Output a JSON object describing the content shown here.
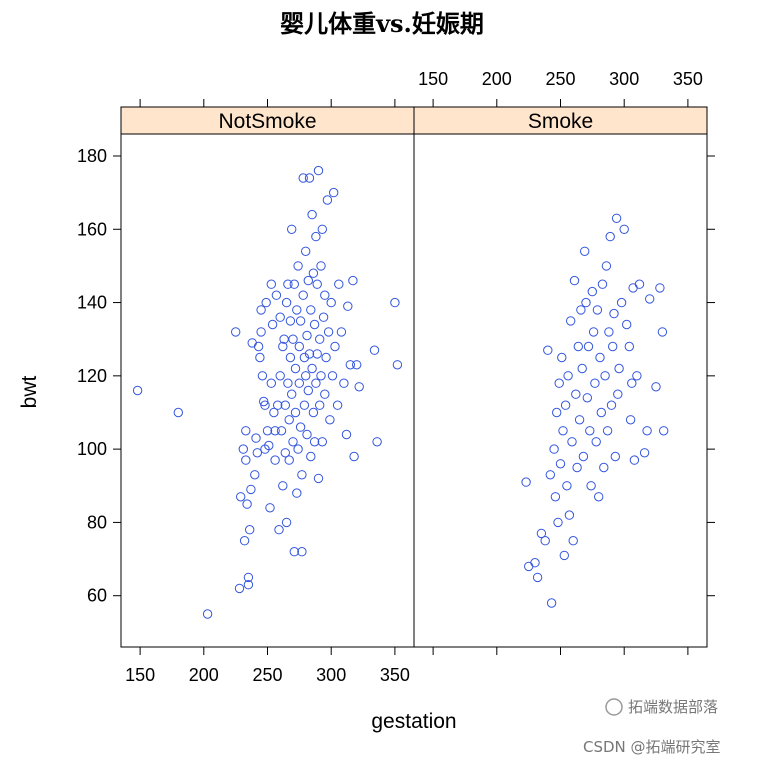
{
  "chart_data": {
    "type": "scatter",
    "title": "婴儿体重vs.妊娠期",
    "xlabel": "gestation",
    "ylabel": "bwt",
    "xlim": [
      135,
      365
    ],
    "ylim": [
      46,
      186
    ],
    "x_ticks": [
      150,
      200,
      250,
      300,
      350
    ],
    "y_ticks": [
      60,
      80,
      100,
      120,
      140,
      160,
      180
    ],
    "marker_color": "#3355dd",
    "marker": "open-circle",
    "panels": [
      {
        "name": "NotSmoke",
        "points": [
          [
            148,
            116
          ],
          [
            180,
            110
          ],
          [
            203,
            55
          ],
          [
            225,
            132
          ],
          [
            228,
            62
          ],
          [
            229,
            87
          ],
          [
            231,
            100
          ],
          [
            232,
            75
          ],
          [
            233,
            105
          ],
          [
            233,
            97
          ],
          [
            234,
            85
          ],
          [
            235,
            65
          ],
          [
            235,
            63
          ],
          [
            236,
            78
          ],
          [
            237,
            89
          ],
          [
            238,
            129
          ],
          [
            240,
            93
          ],
          [
            241,
            103
          ],
          [
            242,
            99
          ],
          [
            243,
            128
          ],
          [
            244,
            125
          ],
          [
            245,
            138
          ],
          [
            245,
            132
          ],
          [
            246,
            120
          ],
          [
            247,
            113
          ],
          [
            248,
            100
          ],
          [
            248,
            112
          ],
          [
            249,
            140
          ],
          [
            250,
            105
          ],
          [
            251,
            101
          ],
          [
            252,
            84
          ],
          [
            253,
            145
          ],
          [
            253,
            118
          ],
          [
            254,
            134
          ],
          [
            255,
            110
          ],
          [
            256,
            105
          ],
          [
            256,
            97
          ],
          [
            257,
            142
          ],
          [
            258,
            112
          ],
          [
            259,
            78
          ],
          [
            260,
            136
          ],
          [
            260,
            120
          ],
          [
            261,
            105
          ],
          [
            262,
            90
          ],
          [
            262,
            128
          ],
          [
            263,
            130
          ],
          [
            264,
            99
          ],
          [
            264,
            112
          ],
          [
            265,
            140
          ],
          [
            265,
            80
          ],
          [
            266,
            145
          ],
          [
            266,
            118
          ],
          [
            267,
            108
          ],
          [
            267,
            97
          ],
          [
            268,
            125
          ],
          [
            268,
            135
          ],
          [
            269,
            160
          ],
          [
            269,
            115
          ],
          [
            270,
            102
          ],
          [
            270,
            130
          ],
          [
            271,
            72
          ],
          [
            271,
            145
          ],
          [
            272,
            122
          ],
          [
            272,
            110
          ],
          [
            273,
            138
          ],
          [
            273,
            88
          ],
          [
            274,
            150
          ],
          [
            274,
            100
          ],
          [
            275,
            128
          ],
          [
            275,
            118
          ],
          [
            276,
            135
          ],
          [
            276,
            106
          ],
          [
            277,
            72
          ],
          [
            277,
            93
          ],
          [
            278,
            174
          ],
          [
            278,
            142
          ],
          [
            279,
            125
          ],
          [
            279,
            112
          ],
          [
            280,
            154
          ],
          [
            280,
            120
          ],
          [
            281,
            131
          ],
          [
            281,
            104
          ],
          [
            282,
            146
          ],
          [
            282,
            116
          ],
          [
            283,
            174
          ],
          [
            283,
            126
          ],
          [
            284,
            138
          ],
          [
            284,
            98
          ],
          [
            285,
            164
          ],
          [
            285,
            122
          ],
          [
            286,
            148
          ],
          [
            286,
            110
          ],
          [
            287,
            134
          ],
          [
            287,
            102
          ],
          [
            288,
            158
          ],
          [
            288,
            118
          ],
          [
            289,
            126
          ],
          [
            289,
            145
          ],
          [
            290,
            176
          ],
          [
            290,
            92
          ],
          [
            291,
            130
          ],
          [
            291,
            112
          ],
          [
            292,
            150
          ],
          [
            292,
            120
          ],
          [
            293,
            160
          ],
          [
            293,
            102
          ],
          [
            294,
            136
          ],
          [
            295,
            142
          ],
          [
            295,
            115
          ],
          [
            296,
            125
          ],
          [
            297,
            168
          ],
          [
            298,
            132
          ],
          [
            299,
            108
          ],
          [
            300,
            140
          ],
          [
            301,
            120
          ],
          [
            302,
            170
          ],
          [
            303,
            128
          ],
          [
            305,
            112
          ],
          [
            306,
            145
          ],
          [
            308,
            132
          ],
          [
            310,
            118
          ],
          [
            312,
            104
          ],
          [
            313,
            139
          ],
          [
            315,
            123
          ],
          [
            317,
            146
          ],
          [
            318,
            98
          ],
          [
            320,
            123
          ],
          [
            322,
            117
          ],
          [
            334,
            127
          ],
          [
            336,
            102
          ],
          [
            350,
            140
          ],
          [
            352,
            123
          ]
        ]
      },
      {
        "name": "Smoke",
        "points": [
          [
            223,
            91
          ],
          [
            225,
            68
          ],
          [
            230,
            69
          ],
          [
            232,
            65
          ],
          [
            235,
            77
          ],
          [
            238,
            75
          ],
          [
            240,
            127
          ],
          [
            242,
            93
          ],
          [
            243,
            58
          ],
          [
            245,
            100
          ],
          [
            246,
            87
          ],
          [
            247,
            110
          ],
          [
            248,
            80
          ],
          [
            249,
            118
          ],
          [
            250,
            96
          ],
          [
            251,
            125
          ],
          [
            252,
            105
          ],
          [
            253,
            71
          ],
          [
            254,
            112
          ],
          [
            255,
            90
          ],
          [
            256,
            120
          ],
          [
            257,
            82
          ],
          [
            258,
            135
          ],
          [
            259,
            102
          ],
          [
            260,
            75
          ],
          [
            261,
            146
          ],
          [
            262,
            115
          ],
          [
            263,
            95
          ],
          [
            264,
            128
          ],
          [
            265,
            108
          ],
          [
            266,
            138
          ],
          [
            267,
            122
          ],
          [
            268,
            98
          ],
          [
            269,
            154
          ],
          [
            270,
            140
          ],
          [
            271,
            114
          ],
          [
            272,
            128
          ],
          [
            273,
            105
          ],
          [
            274,
            90
          ],
          [
            275,
            143
          ],
          [
            276,
            132
          ],
          [
            277,
            118
          ],
          [
            278,
            102
          ],
          [
            279,
            138
          ],
          [
            280,
            87
          ],
          [
            281,
            125
          ],
          [
            282,
            110
          ],
          [
            283,
            145
          ],
          [
            284,
            95
          ],
          [
            285,
            120
          ],
          [
            286,
            150
          ],
          [
            287,
            105
          ],
          [
            288,
            132
          ],
          [
            289,
            158
          ],
          [
            290,
            112
          ],
          [
            291,
            128
          ],
          [
            292,
            137
          ],
          [
            293,
            98
          ],
          [
            294,
            163
          ],
          [
            295,
            115
          ],
          [
            296,
            122
          ],
          [
            298,
            140
          ],
          [
            300,
            160
          ],
          [
            302,
            134
          ],
          [
            304,
            128
          ],
          [
            305,
            108
          ],
          [
            306,
            118
          ],
          [
            307,
            144
          ],
          [
            308,
            97
          ],
          [
            310,
            120
          ],
          [
            312,
            145
          ],
          [
            316,
            99
          ],
          [
            318,
            105
          ],
          [
            320,
            141
          ],
          [
            325,
            117
          ],
          [
            328,
            144
          ],
          [
            330,
            132
          ],
          [
            331,
            105
          ]
        ]
      }
    ]
  },
  "watermark": {
    "top": "拓端数据部落",
    "bottom": "CSDN @拓端研究室"
  }
}
